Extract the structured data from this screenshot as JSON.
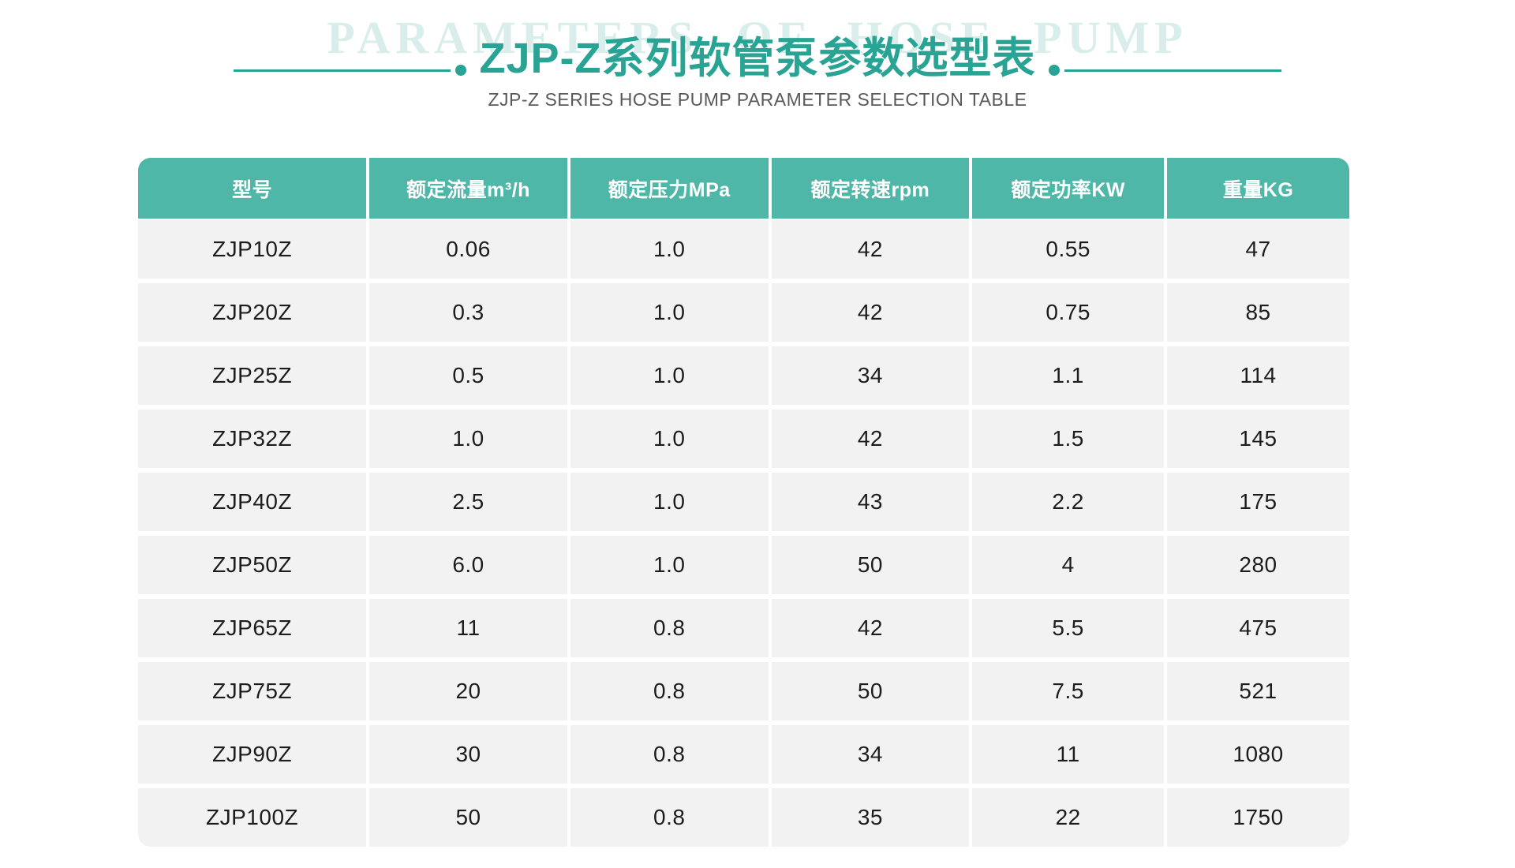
{
  "header": {
    "watermark": "PARAMETERS OF HOSE PUMP",
    "title": "ZJP-Z系列软管泵参数选型表",
    "subtitle": "ZJP-Z SERIES HOSE PUMP PARAMETER SELECTION TABLE"
  },
  "colors": {
    "accent": "#29a393",
    "table_header_bg": "#4fb7a7",
    "row_bg": "#f2f2f2",
    "watermark": "#d9edea",
    "subtitle_text": "#58595b",
    "cell_text": "#1c1c1c"
  },
  "table": {
    "columns": [
      "型号",
      "额定流量m³/h",
      "额定压力MPa",
      "额定转速rpm",
      "额定功率KW",
      "重量KG"
    ],
    "rows": [
      [
        "ZJP10Z",
        "0.06",
        "1.0",
        "42",
        "0.55",
        "47"
      ],
      [
        "ZJP20Z",
        "0.3",
        "1.0",
        "42",
        "0.75",
        "85"
      ],
      [
        "ZJP25Z",
        "0.5",
        "1.0",
        "34",
        "1.1",
        "114"
      ],
      [
        "ZJP32Z",
        "1.0",
        "1.0",
        "42",
        "1.5",
        "145"
      ],
      [
        "ZJP40Z",
        "2.5",
        "1.0",
        "43",
        "2.2",
        "175"
      ],
      [
        "ZJP50Z",
        "6.0",
        "1.0",
        "50",
        "4",
        "280"
      ],
      [
        "ZJP65Z",
        "11",
        "0.8",
        "42",
        "5.5",
        "475"
      ],
      [
        "ZJP75Z",
        "20",
        "0.8",
        "50",
        "7.5",
        "521"
      ],
      [
        "ZJP90Z",
        "30",
        "0.8",
        "34",
        "11",
        "1080"
      ],
      [
        "ZJP100Z",
        "50",
        "0.8",
        "35",
        "22",
        "1750"
      ]
    ]
  }
}
